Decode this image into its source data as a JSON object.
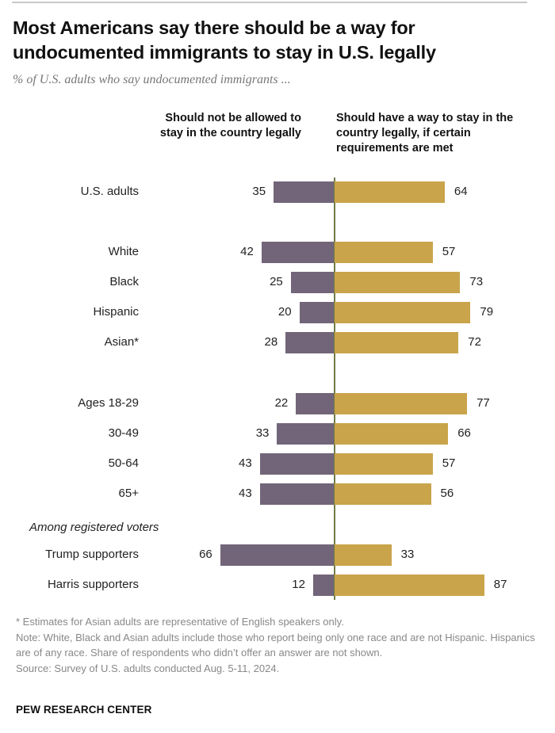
{
  "header": {
    "title": "Most Americans say there should be a way for undocumented immigrants to stay in U.S. legally",
    "subtitle": "% of U.S. adults who say undocumented immigrants ..."
  },
  "chart_data": {
    "type": "bar",
    "orientation": "horizontal-diverging",
    "title": "Most Americans say there should be a way for undocumented immigrants to stay in U.S. legally",
    "subtitle": "% of U.S. adults who say undocumented immigrants ...",
    "categories": [
      "U.S. adults",
      "White",
      "Black",
      "Hispanic",
      "Asian*",
      "Ages 18-29",
      "30-49",
      "50-64",
      "65+",
      "Trump supporters",
      "Harris supporters"
    ],
    "groups": [
      {
        "label": "",
        "categories": [
          "U.S. adults"
        ]
      },
      {
        "label": "",
        "categories": [
          "White",
          "Black",
          "Hispanic",
          "Asian*"
        ]
      },
      {
        "label": "",
        "categories": [
          "Ages 18-29",
          "30-49",
          "50-64",
          "65+"
        ]
      },
      {
        "label": "Among registered voters",
        "categories": [
          "Trump supporters",
          "Harris supporters"
        ]
      }
    ],
    "series": [
      {
        "name": "Should not be allowed to stay in the country legally",
        "color": "#726579",
        "values": [
          35,
          42,
          25,
          20,
          28,
          22,
          33,
          43,
          43,
          66,
          12
        ]
      },
      {
        "name": "Should have a way to stay in the country legally, if certain requirements are met",
        "color": "#c9a44a",
        "values": [
          64,
          57,
          73,
          79,
          72,
          77,
          66,
          57,
          56,
          33,
          87
        ]
      }
    ],
    "axis_color": "#6f7a45",
    "xlim": [
      -100,
      100
    ],
    "grid": false
  },
  "footer": {
    "notes": [
      "* Estimates for Asian adults are representative of English speakers only.",
      "Note: White, Black and Asian adults include those who report being only one race and are not Hispanic. Hispanics are of any race. Share of respondents who didn’t offer an answer are not shown.",
      "Source: Survey of U.S. adults conducted Aug. 5-11, 2024."
    ],
    "brand": "PEW RESEARCH CENTER"
  }
}
